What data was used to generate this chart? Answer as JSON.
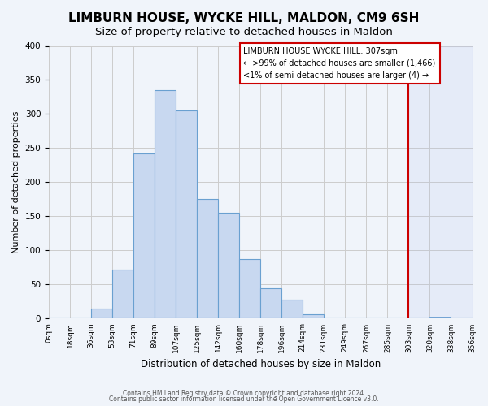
{
  "title": "LIMBURN HOUSE, WYCKE HILL, MALDON, CM9 6SH",
  "subtitle": "Size of property relative to detached houses in Maldon",
  "xlabel": "Distribution of detached houses by size in Maldon",
  "ylabel": "Number of detached properties",
  "footer_lines": [
    "Contains HM Land Registry data © Crown copyright and database right 2024.",
    "Contains public sector information licensed under the Open Government Licence v3.0."
  ],
  "x_labels": [
    "0sqm",
    "18sqm",
    "36sqm",
    "53sqm",
    "71sqm",
    "89sqm",
    "107sqm",
    "125sqm",
    "142sqm",
    "160sqm",
    "178sqm",
    "196sqm",
    "214sqm",
    "231sqm",
    "249sqm",
    "267sqm",
    "285sqm",
    "303sqm",
    "320sqm",
    "338sqm",
    "356sqm"
  ],
  "bar_values": [
    0,
    0,
    15,
    72,
    242,
    335,
    305,
    175,
    155,
    87,
    45,
    28,
    7,
    0,
    0,
    0,
    0,
    0,
    2,
    0
  ],
  "bar_color": "#c8d8f0",
  "bar_edge_color": "#6aa0d0",
  "vline_x": 17.0,
  "vline_color": "#cc0000",
  "annotation_title": "LIMBURN HOUSE WYCKE HILL: 307sqm",
  "annotation_line1": "← >99% of detached houses are smaller (1,466)",
  "annotation_line2": "<1% of semi-detached houses are larger (4) →",
  "annotation_box_color": "#cc0000",
  "annotation_bg": "#ffffff",
  "ylim": [
    0,
    400
  ],
  "yticks": [
    0,
    50,
    100,
    150,
    200,
    250,
    300,
    350,
    400
  ],
  "grid_color": "#cccccc",
  "bg_color": "#f0f4fa",
  "title_fontsize": 11,
  "subtitle_fontsize": 9.5
}
